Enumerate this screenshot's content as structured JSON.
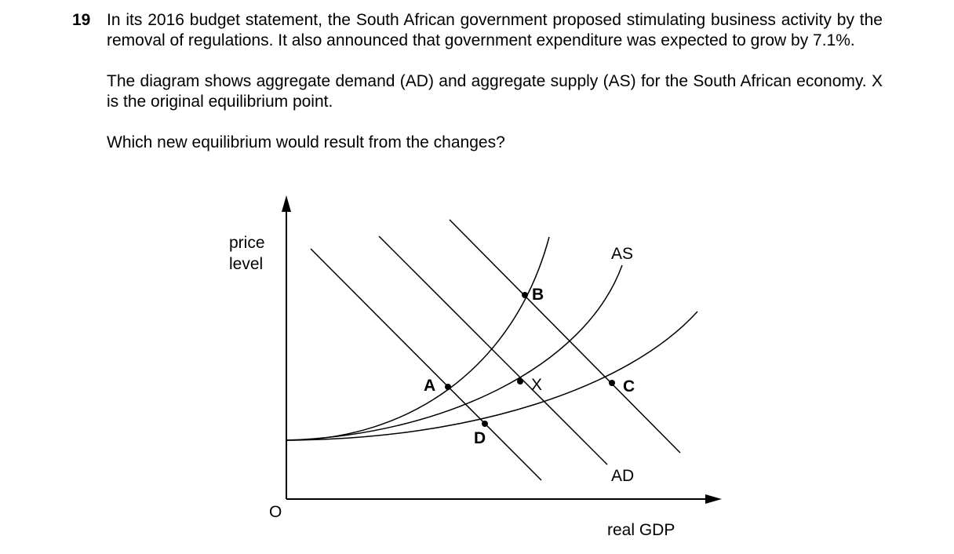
{
  "question": {
    "number": "19",
    "paragraph1": "In its 2016 budget statement, the South African government proposed stimulating business activity by the removal of regulations. It also announced that government expenditure was expected to grow by 7.1%.",
    "paragraph2": "The diagram shows aggregate demand (AD) and aggregate supply (AS) for the South African economy. X is the original equilibrium point.",
    "prompt": "Which new equilibrium would result from the changes?"
  },
  "diagram": {
    "y_axis_label_line1": "price",
    "y_axis_label_line2": "level",
    "x_axis_label": "real GDP",
    "origin_label": "O",
    "supply_curve_label": "AS",
    "demand_curve_label": "AD",
    "points": {
      "a": "A",
      "b": "B",
      "c": "C",
      "d": "D",
      "x": "X"
    }
  }
}
